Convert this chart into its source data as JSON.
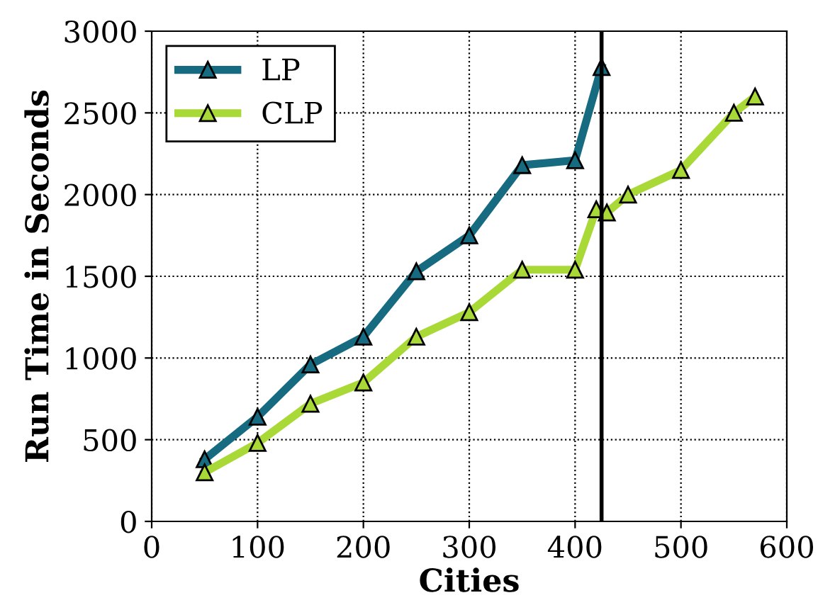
{
  "chart_data": {
    "type": "line",
    "xlabel": "Cities",
    "ylabel": "Run Time in Seconds",
    "series": [
      {
        "name": "LP",
        "color": "#176b80",
        "x": [
          50,
          100,
          150,
          200,
          250,
          300,
          350,
          400,
          425
        ],
        "values": [
          380,
          640,
          960,
          1130,
          1530,
          1750,
          2180,
          2210,
          2780
        ]
      },
      {
        "name": "CLP",
        "color": "#a8d936",
        "x": [
          50,
          100,
          150,
          200,
          250,
          300,
          350,
          400,
          420,
          430,
          450,
          500,
          550,
          570
        ],
        "values": [
          300,
          480,
          720,
          850,
          1130,
          1280,
          1540,
          1540,
          1910,
          1890,
          2000,
          2150,
          2500,
          2600
        ]
      }
    ],
    "xlim": [
      0,
      600
    ],
    "xticks": [
      0,
      100,
      200,
      300,
      400,
      500,
      600
    ],
    "ylim": [
      0,
      3000
    ],
    "yticks": [
      0,
      500,
      1000,
      1500,
      2000,
      2500,
      3000
    ],
    "ref_lines": [
      {
        "axis": "x",
        "value": 425,
        "color": "#000000",
        "line_style": "solid"
      }
    ],
    "grid": true,
    "legend": "top left",
    "marker": "triangle",
    "line_style": "solid"
  }
}
